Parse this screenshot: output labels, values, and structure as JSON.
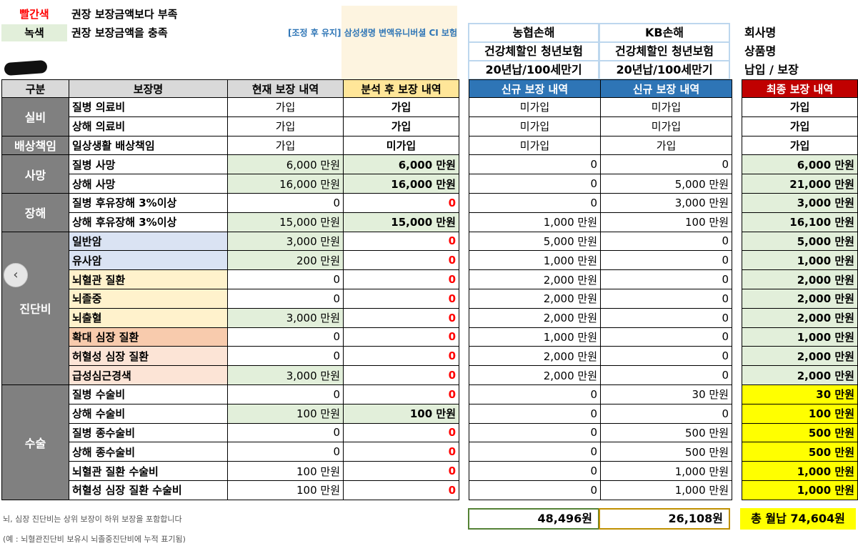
{
  "legend": [
    {
      "key": "빨간색",
      "desc": "권장 보장금액보다 부족"
    },
    {
      "key": "녹색",
      "desc": "권장 보장금액을 충족"
    }
  ],
  "note_adjust": "[조정 후 유지] 삼성생명 변액유니버셜 CI 보험",
  "companies": [
    {
      "company": "농협손해",
      "product": "건강체할인 청년보험",
      "term": "20년납/100세만기"
    },
    {
      "company": "KB손해",
      "product": "건강체할인 청년보험",
      "term": "20년납/100세만기"
    }
  ],
  "meta_labels": {
    "company": "회사명",
    "product": "상품명",
    "term": "납입 / 보장"
  },
  "headers": {
    "category": "구분",
    "name": "보장명",
    "current": "현재 보장 내역",
    "analysis": "분석 후 보장 내역",
    "new1": "신규 보장 내역",
    "new2": "신규 보장 내역",
    "final": "최종 보장 내역"
  },
  "rows": [
    {
      "cat": "실비",
      "name": "질병 의료비",
      "cur": "가입",
      "ana": "가입",
      "n1": "미가입",
      "n2": "미가입",
      "fin": "가입"
    },
    {
      "name": "상해 의료비",
      "cur": "가입",
      "ana": "가입",
      "n1": "미가입",
      "n2": "미가입",
      "fin": "가입"
    },
    {
      "cat": "배상책임",
      "name": "일상생활 배상책임",
      "cur": "가입",
      "ana": "미가입",
      "n1": "미가입",
      "n2": "가입",
      "fin": "가입"
    },
    {
      "cat": "사망",
      "name": "질병 사망",
      "cur": "6,000 만원",
      "ana": "6,000 만원",
      "n1": "0",
      "n2": "0",
      "fin": "6,000 만원"
    },
    {
      "name": "상해 사망",
      "cur": "16,000 만원",
      "ana": "16,000 만원",
      "n1": "0",
      "n2": "5,000 만원",
      "fin": "21,000 만원"
    },
    {
      "cat": "장해",
      "name": "질병 후유장해 3%이상",
      "cur": "0",
      "ana": "0",
      "n1": "0",
      "n2": "3,000 만원",
      "fin": "3,000 만원"
    },
    {
      "name": "상해 후유장해 3%이상",
      "cur": "15,000 만원",
      "ana": "15,000 만원",
      "n1": "1,000 만원",
      "n2": "100 만원",
      "fin": "16,100 만원"
    },
    {
      "cat": "진단비",
      "name": "일반암",
      "cur": "3,000 만원",
      "ana": "0",
      "n1": "5,000 만원",
      "n2": "0",
      "fin": "5,000 만원"
    },
    {
      "name": "유사암",
      "cur": "200 만원",
      "ana": "0",
      "n1": "1,000 만원",
      "n2": "0",
      "fin": "1,000 만원"
    },
    {
      "name": "뇌혈관 질환",
      "cur": "0",
      "ana": "0",
      "n1": "2,000 만원",
      "n2": "0",
      "fin": "2,000 만원"
    },
    {
      "name": "뇌졸중",
      "cur": "0",
      "ana": "0",
      "n1": "2,000 만원",
      "n2": "0",
      "fin": "2,000 만원"
    },
    {
      "name": "뇌출혈",
      "cur": "3,000 만원",
      "ana": "0",
      "n1": "2,000 만원",
      "n2": "0",
      "fin": "2,000 만원"
    },
    {
      "name": "확대 심장 질환",
      "cur": "0",
      "ana": "0",
      "n1": "1,000 만원",
      "n2": "0",
      "fin": "1,000 만원"
    },
    {
      "name": "허혈성 심장 질환",
      "cur": "0",
      "ana": "0",
      "n1": "2,000 만원",
      "n2": "0",
      "fin": "2,000 만원"
    },
    {
      "name": "급성심근경색",
      "cur": "3,000 만원",
      "ana": "0",
      "n1": "2,000 만원",
      "n2": "0",
      "fin": "2,000 만원"
    },
    {
      "cat": "수술",
      "name": "질병 수술비",
      "cur": "0",
      "ana": "0",
      "n1": "0",
      "n2": "30 만원",
      "fin": "30 만원"
    },
    {
      "name": "상해 수술비",
      "cur": "100 만원",
      "ana": "100 만원",
      "n1": "0",
      "n2": "0",
      "fin": "100 만원"
    },
    {
      "name": "질병 종수술비",
      "cur": "0",
      "ana": "0",
      "n1": "0",
      "n2": "500 만원",
      "fin": "500 만원"
    },
    {
      "name": "상해 종수술비",
      "cur": "0",
      "ana": "0",
      "n1": "0",
      "n2": "500 만원",
      "fin": "500 만원"
    },
    {
      "name": "뇌혈관 질환 수술비",
      "cur": "100 만원",
      "ana": "0",
      "n1": "0",
      "n2": "1,000 만원",
      "fin": "1,000 만원"
    },
    {
      "name": "허혈성 심장 질환 수술비",
      "cur": "100 만원",
      "ana": "0",
      "n1": "0",
      "n2": "1,000 만원",
      "fin": "1,000 만원"
    }
  ],
  "totals": {
    "n1": "48,496원",
    "n2": "26,108원",
    "final": "총 월납 74,604원"
  },
  "footnotes": [
    "뇌, 심장 진단비는 상위 보장이 하위 보장을 포함합니다",
    "(예 : 뇌혈관진단비 보유시 뇌졸중진단비에 누적 표기됨)"
  ],
  "colors": {
    "red": "#ff0000",
    "green_fill": "#e2efda",
    "blue_header": "#2e75b6",
    "red_header": "#c00000",
    "yellow_total": "#ffff00"
  }
}
